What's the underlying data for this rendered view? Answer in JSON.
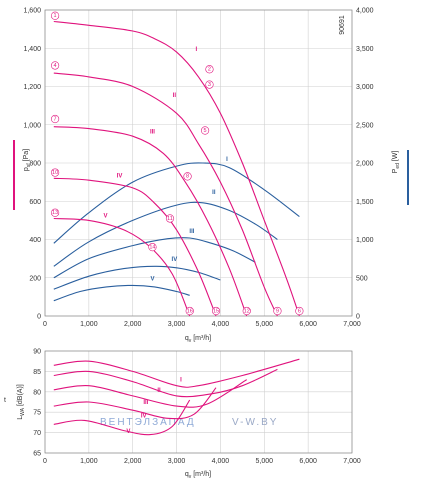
{
  "chart_data": [
    {
      "type": "line",
      "code": "90691",
      "xlabel": "q",
      "xlabel_sub": "v",
      "xunit": "[m³/h]",
      "ylabel_left": "p",
      "ylabel_left_sub": "sf",
      "ylabel_left_unit": "[Pa]",
      "ylabel_right": "P",
      "ylabel_right_sub": "ed",
      "ylabel_right_unit": "[W]",
      "xlim": [
        0,
        7000
      ],
      "ylim_left": [
        0,
        1600
      ],
      "ylim_right": [
        0,
        4000
      ],
      "x_ticks": [
        "0",
        "1,000",
        "2,000",
        "3,000",
        "4,000",
        "5,000",
        "6,000",
        "7,000"
      ],
      "y_ticks_left": [
        "0",
        "200",
        "400",
        "600",
        "800",
        "1,000",
        "1,200",
        "1,400",
        "1,600"
      ],
      "y_ticks_right": [
        "0",
        "500",
        "1,000",
        "1,500",
        "2,000",
        "2,500",
        "3,000",
        "3,500",
        "4,000"
      ],
      "grid": true,
      "pressure_series": [
        {
          "name": "I",
          "x": [
            200,
            1000,
            2000,
            2500,
            3000,
            3500,
            4000,
            4500,
            5000,
            5500,
            5800
          ],
          "y": [
            1540,
            1520,
            1490,
            1450,
            1380,
            1250,
            1060,
            800,
            500,
            200,
            0
          ]
        },
        {
          "name": "II",
          "x": [
            200,
            1000,
            2000,
            3000,
            3500,
            4000,
            4500,
            5000,
            5300
          ],
          "y": [
            1270,
            1250,
            1200,
            1060,
            900,
            700,
            450,
            150,
            0
          ]
        },
        {
          "name": "III",
          "x": [
            200,
            1000,
            2000,
            2700,
            3200,
            3700,
            4200,
            4600
          ],
          "y": [
            990,
            980,
            940,
            850,
            700,
            500,
            250,
            0
          ]
        },
        {
          "name": "IV",
          "x": [
            200,
            1000,
            2000,
            2500,
            3000,
            3500,
            3900
          ],
          "y": [
            720,
            710,
            670,
            590,
            450,
            230,
            0
          ]
        },
        {
          "name": "V",
          "x": [
            200,
            1000,
            1800,
            2400,
            2900,
            3300
          ],
          "y": [
            510,
            500,
            450,
            360,
            220,
            0
          ]
        }
      ],
      "pressure_markers": [
        {
          "label": "1",
          "x": 230,
          "y": 1570
        },
        {
          "label": "2",
          "x": 3750,
          "y": 1290
        },
        {
          "label": "3",
          "x": 3750,
          "y": 1210
        },
        {
          "label": "4",
          "x": 230,
          "y": 1310
        },
        {
          "label": "5",
          "x": 3650,
          "y": 970
        },
        {
          "label": "6",
          "x": 5800,
          "y": 0
        },
        {
          "label": "7",
          "x": 230,
          "y": 1030
        },
        {
          "label": "8",
          "x": 3250,
          "y": 730
        },
        {
          "label": "9",
          "x": 5300,
          "y": 0
        },
        {
          "label": "10",
          "x": 230,
          "y": 750
        },
        {
          "label": "11",
          "x": 2850,
          "y": 510
        },
        {
          "label": "12",
          "x": 4600,
          "y": 0
        },
        {
          "label": "13",
          "x": 230,
          "y": 540
        },
        {
          "label": "14",
          "x": 2450,
          "y": 360
        },
        {
          "label": "15",
          "x": 3900,
          "y": 0
        },
        {
          "label": "16",
          "x": 3300,
          "y": 0
        }
      ],
      "pressure_roman": [
        {
          "label": "I",
          "x": 3450,
          "y": 1390
        },
        {
          "label": "II",
          "x": 2950,
          "y": 1150
        },
        {
          "label": "III",
          "x": 2450,
          "y": 960
        },
        {
          "label": "IV",
          "x": 1700,
          "y": 730
        },
        {
          "label": "V",
          "x": 1380,
          "y": 520
        }
      ],
      "power_series": [
        {
          "name": "I",
          "x": [
            200,
            1000,
            2000,
            3000,
            3600,
            4200,
            5000,
            5800
          ],
          "y": [
            950,
            1350,
            1750,
            1960,
            2000,
            1940,
            1650,
            1300
          ]
        },
        {
          "name": "II",
          "x": [
            200,
            1000,
            2000,
            3000,
            3600,
            4200,
            4800,
            5300
          ],
          "y": [
            650,
            970,
            1250,
            1450,
            1480,
            1380,
            1200,
            1000
          ]
        },
        {
          "name": "III",
          "x": [
            200,
            1000,
            2000,
            2800,
            3300,
            3800,
            4300,
            4800
          ],
          "y": [
            500,
            750,
            920,
            1010,
            1020,
            950,
            850,
            700
          ]
        },
        {
          "name": "IV",
          "x": [
            200,
            1000,
            1800,
            2500,
            3000,
            3500,
            4000
          ],
          "y": [
            350,
            520,
            620,
            650,
            630,
            570,
            470
          ]
        },
        {
          "name": "V",
          "x": [
            200,
            800,
            1400,
            2000,
            2500,
            3000,
            3300
          ],
          "y": [
            200,
            320,
            380,
            400,
            380,
            320,
            270
          ]
        }
      ],
      "power_roman": [
        {
          "label": "I",
          "x": 4150,
          "y": 2040
        },
        {
          "label": "II",
          "x": 3850,
          "y": 1610
        },
        {
          "label": "III",
          "x": 3350,
          "y": 1100
        },
        {
          "label": "IV",
          "x": 2950,
          "y": 730
        },
        {
          "label": "V",
          "x": 2450,
          "y": 480
        }
      ]
    },
    {
      "type": "line",
      "xlabel": "q",
      "xlabel_sub": "v",
      "xunit": "[m³/h]",
      "ylabel": "L",
      "ylabel_sub": "WA",
      "yunit": "[dB(A)]",
      "side_label": "t",
      "xlim": [
        0,
        7000
      ],
      "ylim": [
        65,
        90
      ],
      "x_ticks": [
        "0",
        "1,000",
        "2,000",
        "3,000",
        "4,000",
        "5,000",
        "6,000",
        "7,000"
      ],
      "y_ticks": [
        "65",
        "70",
        "75",
        "80",
        "85",
        "90"
      ],
      "grid": true,
      "series": [
        {
          "name": "I",
          "x": [
            200,
            1000,
            2000,
            3000,
            3500,
            4500,
            5800
          ],
          "y": [
            86.5,
            87.5,
            85.0,
            81.5,
            81.5,
            84.0,
            88.0
          ]
        },
        {
          "name": "II",
          "x": [
            200,
            1000,
            2000,
            3000,
            3800,
            4500,
            5300
          ],
          "y": [
            84.0,
            85.0,
            82.5,
            79.0,
            79.5,
            81.5,
            85.5
          ]
        },
        {
          "name": "III",
          "x": [
            200,
            1000,
            2000,
            3000,
            3700,
            4600
          ],
          "y": [
            80.5,
            81.5,
            79.0,
            76.5,
            77.0,
            83.0
          ]
        },
        {
          "name": "IV",
          "x": [
            200,
            1000,
            2000,
            2800,
            3400,
            3900
          ],
          "y": [
            76.5,
            77.5,
            75.5,
            73.5,
            74.5,
            81.0
          ]
        },
        {
          "name": "V",
          "x": [
            200,
            900,
            1800,
            2400,
            2900,
            3300
          ],
          "y": [
            72.0,
            73.0,
            70.5,
            69.5,
            71.5,
            78.0
          ]
        }
      ],
      "roman_labels": [
        {
          "label": "I",
          "x": 3100,
          "y": 82.8
        },
        {
          "label": "II",
          "x": 2600,
          "y": 80.2
        },
        {
          "label": "III",
          "x": 2300,
          "y": 77.2
        },
        {
          "label": "IV",
          "x": 2250,
          "y": 74.0
        },
        {
          "label": "V",
          "x": 1900,
          "y": 70.2
        }
      ],
      "watermark": "ВЕНТЭЛЗАПАД",
      "watermark_site": "V-W.BY"
    }
  ],
  "colors": {
    "pressure": "#e0137d",
    "power": "#2a5f9e",
    "grid": "#d0d0d0",
    "axis": "#888888",
    "watermark": "#8ea9d6",
    "watermark_site": "#9aa8c6"
  }
}
